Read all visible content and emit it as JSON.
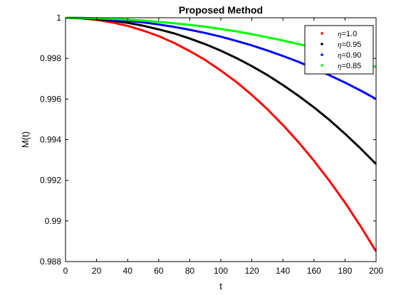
{
  "chart_data": {
    "type": "line",
    "title": "Proposed Method",
    "xlabel": "t",
    "ylabel": "M(t)",
    "xlim": [
      0,
      200
    ],
    "ylim": [
      0.988,
      1
    ],
    "x_ticks": [
      0,
      20,
      40,
      60,
      80,
      100,
      120,
      140,
      160,
      180,
      200
    ],
    "x_tick_labels": [
      "0",
      "20",
      "40",
      "60",
      "80",
      "100",
      "120",
      "140",
      "160",
      "180",
      "200"
    ],
    "y_ticks": [
      0.988,
      0.99,
      0.992,
      0.994,
      0.996,
      0.998,
      1
    ],
    "y_tick_labels": [
      "0.988",
      "0.99",
      "0.992",
      "0.994",
      "0.996",
      "0.998",
      "1"
    ],
    "grid": false,
    "legend_position": "top-right",
    "x": [
      0,
      10,
      20,
      30,
      40,
      50,
      60,
      70,
      80,
      90,
      100,
      110,
      120,
      130,
      140,
      150,
      160,
      170,
      180,
      190,
      200
    ],
    "series": [
      {
        "name": "η=1.0",
        "legend_symbol": "η",
        "legend_value": "=1.0",
        "color": "#ff0000",
        "values": [
          1,
          0.99997,
          0.9999,
          0.99977,
          0.9996,
          0.99937,
          0.9991,
          0.99876,
          0.99836,
          0.99792,
          0.9974,
          0.99684,
          0.9962,
          0.9955,
          0.99472,
          0.99388,
          0.99296,
          0.99197,
          0.9909,
          0.98974,
          0.9885
        ]
      },
      {
        "name": "η=0.95",
        "legend_symbol": "η",
        "legend_value": "=0.95",
        "color": "#000000",
        "values": [
          1,
          0.99998,
          0.99993,
          0.99986,
          0.99975,
          0.99961,
          0.99943,
          0.99923,
          0.99898,
          0.9987,
          0.99838,
          0.99802,
          0.99762,
          0.99718,
          0.99669,
          0.99616,
          0.99559,
          0.99497,
          0.99429,
          0.99357,
          0.9928
        ]
      },
      {
        "name": "η=0.90",
        "legend_symbol": "η",
        "legend_value": "=0.90",
        "color": "#0000ff",
        "values": [
          1,
          0.99999,
          0.99996,
          0.99991,
          0.99985,
          0.99977,
          0.99967,
          0.99955,
          0.99941,
          0.99925,
          0.99907,
          0.99886,
          0.99864,
          0.99839,
          0.99812,
          0.99783,
          0.99751,
          0.99717,
          0.99681,
          0.99642,
          0.996
        ]
      },
      {
        "name": "η=0.85",
        "legend_symbol": "η",
        "legend_value": "=0.85",
        "color": "#00ff00",
        "values": [
          1,
          0.99999,
          0.99998,
          0.99995,
          0.99991,
          0.99986,
          0.9998,
          0.99973,
          0.99965,
          0.99956,
          0.99945,
          0.99933,
          0.99919,
          0.99904,
          0.99888,
          0.99871,
          0.99852,
          0.99831,
          0.99808,
          0.99784,
          0.99758
        ]
      }
    ]
  }
}
